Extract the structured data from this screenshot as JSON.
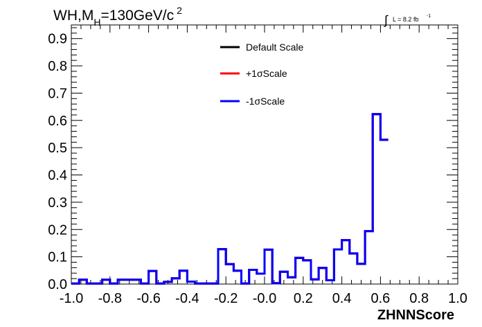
{
  "chart_data": {
    "type": "histogram",
    "title_main": "WH,M",
    "title_sub": "H",
    "title_rest": "=130GeV/c",
    "title_sup": "2",
    "luminosity_label": "L = 8.2 fb",
    "luminosity_sup": "-1",
    "xlabel": "ZHNNScore",
    "xlim": [
      -1.0,
      1.0
    ],
    "ylim": [
      0.0,
      0.95
    ],
    "x_ticks": [
      "-1.0",
      "-0.8",
      "-0.6",
      "-0.4",
      "-0.2",
      "-0.0",
      "0.2",
      "0.4",
      "0.6",
      "0.8",
      "1.0"
    ],
    "y_ticks": [
      "0.0",
      "0.1",
      "0.2",
      "0.3",
      "0.4",
      "0.5",
      "0.6",
      "0.7",
      "0.8",
      "0.9"
    ],
    "bin_edges_start": -1.0,
    "bin_width": 0.04,
    "series": [
      {
        "name": "Default Scale",
        "color": "#000000",
        "values": [
          0.002,
          0.016,
          0.002,
          0.002,
          0.016,
          0.002,
          0.016,
          0.016,
          0.016,
          0.002,
          0.048,
          0.002,
          0.008,
          0.021,
          0.049,
          0.009,
          0.002,
          0.002,
          0.002,
          0.128,
          0.073,
          0.049,
          0.002,
          0.052,
          0.038,
          0.126,
          0.003,
          0.045,
          0.025,
          0.096,
          0.087,
          0.017,
          0.059,
          0.014,
          0.127,
          0.161,
          0.112,
          0.074,
          0.194,
          0.623,
          0.529
        ]
      },
      {
        "name": "+1σScale",
        "color": "#ff0000",
        "values": [
          0.002,
          0.016,
          0.002,
          0.002,
          0.016,
          0.002,
          0.016,
          0.016,
          0.016,
          0.002,
          0.048,
          0.002,
          0.008,
          0.021,
          0.049,
          0.009,
          0.002,
          0.002,
          0.002,
          0.128,
          0.073,
          0.049,
          0.002,
          0.052,
          0.038,
          0.126,
          0.003,
          0.045,
          0.025,
          0.096,
          0.087,
          0.017,
          0.059,
          0.014,
          0.127,
          0.161,
          0.112,
          0.074,
          0.194,
          0.623,
          0.529
        ]
      },
      {
        "name": "-1σScale",
        "color": "#0000ff",
        "values": [
          0.002,
          0.016,
          0.002,
          0.002,
          0.016,
          0.002,
          0.016,
          0.016,
          0.016,
          0.002,
          0.048,
          0.002,
          0.008,
          0.021,
          0.049,
          0.009,
          0.002,
          0.002,
          0.002,
          0.128,
          0.073,
          0.049,
          0.002,
          0.052,
          0.038,
          0.126,
          0.003,
          0.045,
          0.025,
          0.096,
          0.087,
          0.017,
          0.059,
          0.014,
          0.127,
          0.161,
          0.112,
          0.074,
          0.194,
          0.623,
          0.529
        ]
      }
    ]
  }
}
